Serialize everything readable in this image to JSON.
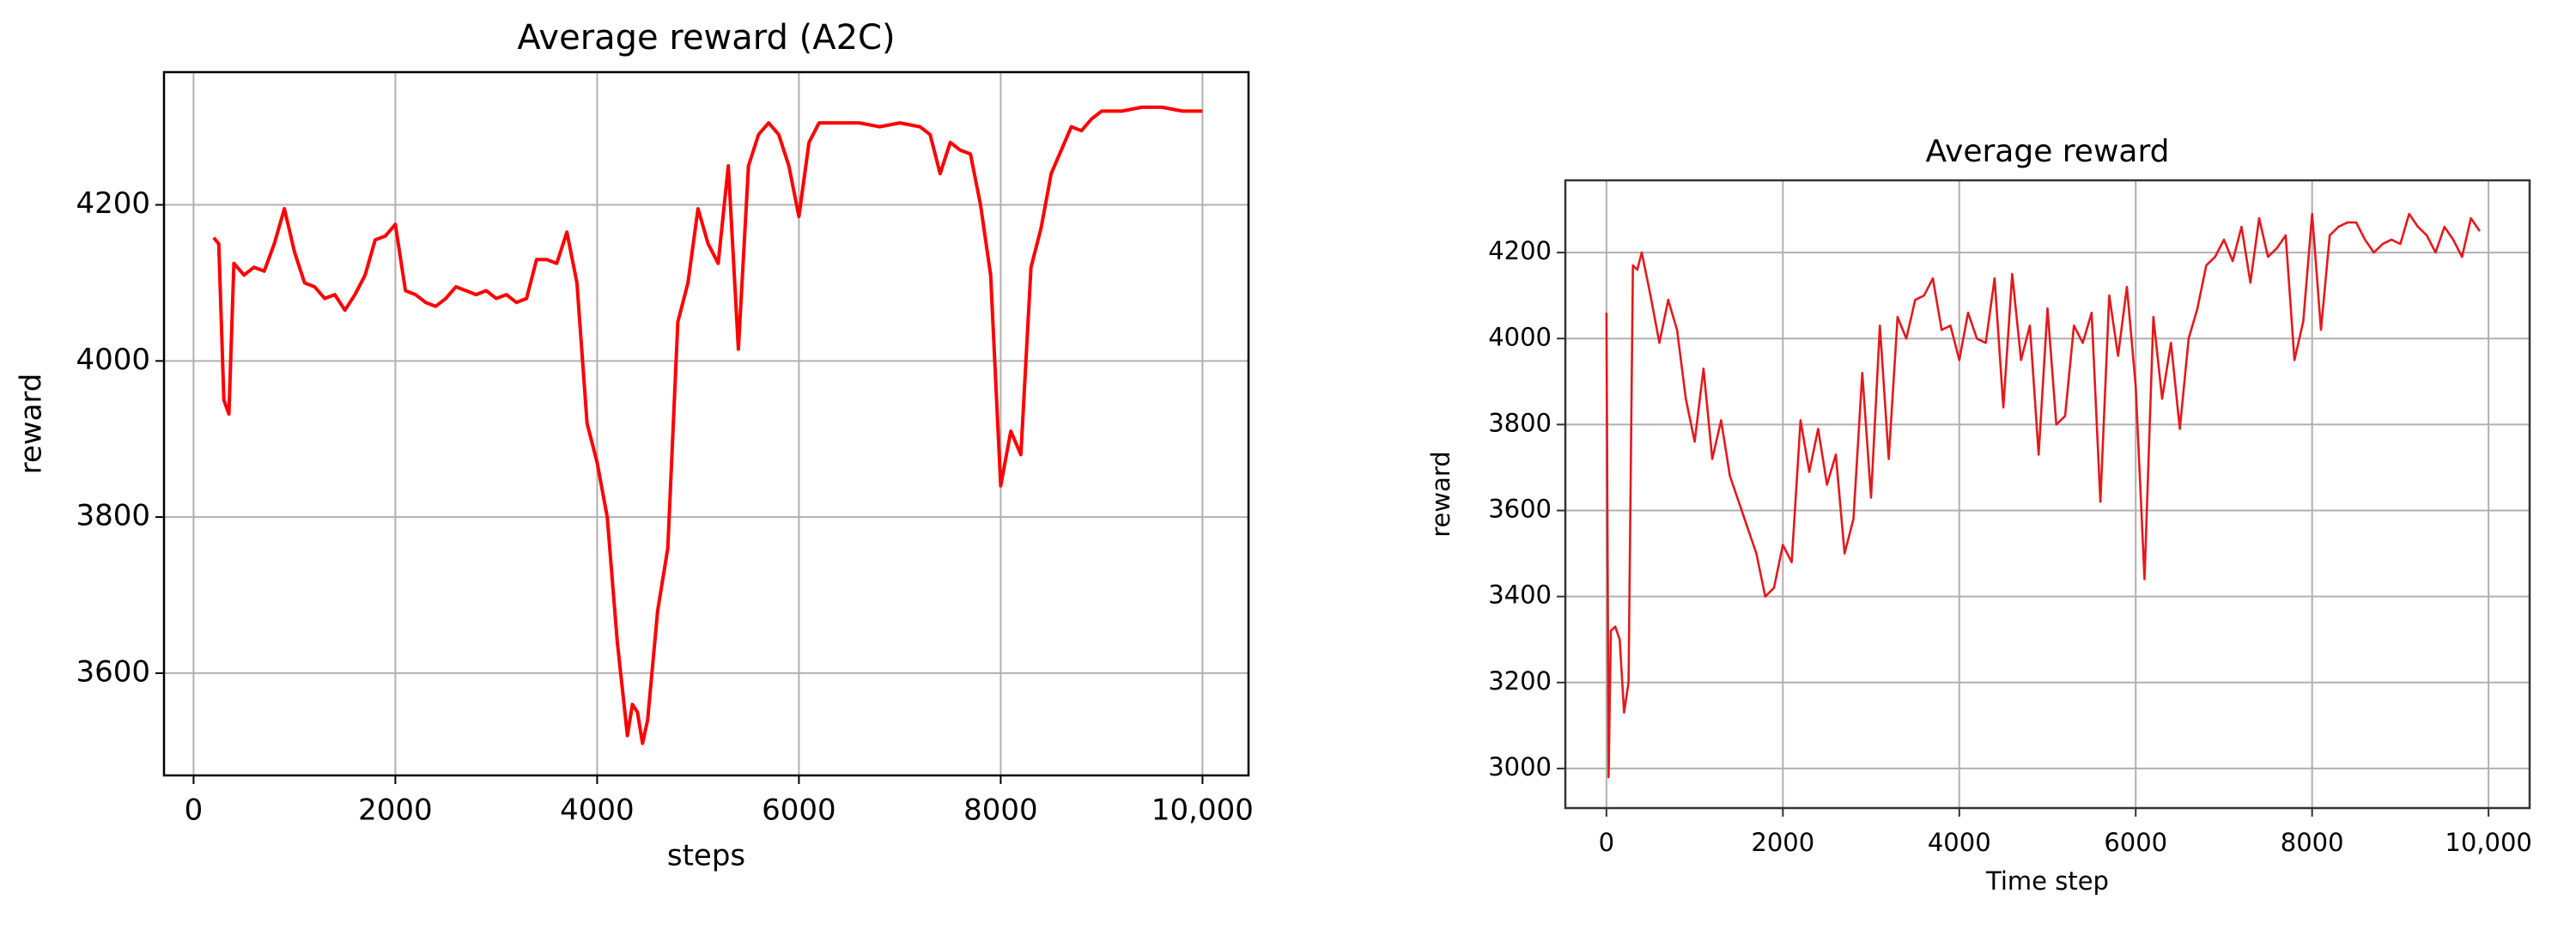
{
  "chart_data": [
    {
      "type": "line",
      "title": "Average reward (A2C)",
      "x_label": "steps",
      "y_label": "reward",
      "xlim": [
        -293,
        10456
      ],
      "ylim": [
        3469,
        4370
      ],
      "xticks": [
        0,
        2000,
        4000,
        6000,
        8000,
        {
          "value": 10000,
          "label": "10,000"
        }
      ],
      "yticks": [
        3600,
        3800,
        4000,
        4200
      ],
      "grid": true,
      "series": [
        {
          "color": "#ff0000",
          "x": [
            200,
            250,
            300,
            350,
            400,
            500,
            600,
            700,
            800,
            900,
            1000,
            1100,
            1200,
            1300,
            1400,
            1500,
            1600,
            1700,
            1800,
            1900,
            2000,
            2100,
            2200,
            2300,
            2400,
            2500,
            2600,
            2700,
            2800,
            2900,
            3000,
            3100,
            3200,
            3300,
            3400,
            3500,
            3600,
            3700,
            3800,
            3900,
            4000,
            4100,
            4200,
            4300,
            4350,
            4400,
            4450,
            4500,
            4600,
            4700,
            4800,
            4900,
            5000,
            5100,
            5200,
            5300,
            5400,
            5500,
            5600,
            5700,
            5800,
            5900,
            6000,
            6100,
            6200,
            6400,
            6600,
            6800,
            7000,
            7200,
            7300,
            7400,
            7500,
            7600,
            7700,
            7800,
            7900,
            8000,
            8100,
            8200,
            8300,
            8400,
            8500,
            8600,
            8700,
            8800,
            8900,
            9000,
            9200,
            9400,
            9600,
            9800,
            10000
          ],
          "values": [
            4158,
            4150,
            3950,
            3932,
            4125,
            4110,
            4120,
            4115,
            4150,
            4195,
            4140,
            4100,
            4095,
            4080,
            4085,
            4065,
            4085,
            4110,
            4155,
            4160,
            4175,
            4090,
            4085,
            4075,
            4070,
            4080,
            4095,
            4090,
            4085,
            4090,
            4080,
            4085,
            4075,
            4080,
            4130,
            4130,
            4125,
            4165,
            4100,
            3920,
            3870,
            3800,
            3640,
            3520,
            3560,
            3550,
            3510,
            3540,
            3680,
            3760,
            4050,
            4100,
            4195,
            4150,
            4125,
            4250,
            4015,
            4250,
            4290,
            4305,
            4290,
            4250,
            4185,
            4280,
            4305,
            4305,
            4305,
            4300,
            4305,
            4300,
            4290,
            4240,
            4280,
            4270,
            4265,
            4200,
            4110,
            3840,
            3910,
            3880,
            4120,
            4170,
            4240,
            4270,
            4300,
            4295,
            4310,
            4320,
            4320,
            4325,
            4325,
            4320,
            4320
          ]
        }
      ]
    },
    {
      "type": "line",
      "title": "Average reward",
      "x_label": "Time step",
      "y_label": "reward",
      "xlim": [
        -466,
        10466
      ],
      "ylim": [
        2908,
        4368
      ],
      "xticks": [
        0,
        2000,
        4000,
        6000,
        8000,
        {
          "value": 10000,
          "label": "10,000"
        }
      ],
      "yticks": [
        3000,
        3200,
        3400,
        3600,
        3800,
        4000,
        4200
      ],
      "grid": true,
      "series": [
        {
          "color": "#e3191c",
          "x": [
            0,
            25,
            50,
            100,
            150,
            200,
            250,
            300,
            350,
            400,
            500,
            600,
            700,
            800,
            900,
            1000,
            1100,
            1200,
            1300,
            1400,
            1500,
            1600,
            1700,
            1800,
            1900,
            2000,
            2100,
            2200,
            2300,
            2400,
            2500,
            2600,
            2700,
            2800,
            2900,
            3000,
            3100,
            3200,
            3300,
            3400,
            3500,
            3600,
            3700,
            3800,
            3900,
            4000,
            4100,
            4200,
            4300,
            4400,
            4500,
            4600,
            4700,
            4800,
            4900,
            5000,
            5100,
            5200,
            5300,
            5400,
            5500,
            5600,
            5700,
            5800,
            5900,
            6000,
            6100,
            6200,
            6300,
            6400,
            6500,
            6600,
            6700,
            6800,
            6900,
            7000,
            7100,
            7200,
            7300,
            7400,
            7500,
            7600,
            7700,
            7800,
            7900,
            8000,
            8100,
            8200,
            8300,
            8400,
            8500,
            8600,
            8700,
            8800,
            8900,
            9000,
            9100,
            9200,
            9300,
            9400,
            9500,
            9600,
            9700,
            9800,
            9900
          ],
          "values": [
            4060,
            2980,
            3320,
            3330,
            3300,
            3130,
            3200,
            4170,
            4160,
            4200,
            4100,
            3990,
            4090,
            4020,
            3860,
            3760,
            3930,
            3720,
            3810,
            3680,
            3620,
            3560,
            3500,
            3400,
            3420,
            3520,
            3480,
            3810,
            3690,
            3790,
            3660,
            3730,
            3500,
            3580,
            3920,
            3630,
            4030,
            3720,
            4050,
            4000,
            4090,
            4100,
            4140,
            4020,
            4030,
            3950,
            4060,
            4000,
            3990,
            4140,
            3840,
            4150,
            3950,
            4030,
            3730,
            4070,
            3800,
            3820,
            4030,
            3990,
            4060,
            3620,
            4100,
            3960,
            4120,
            3890,
            3440,
            4050,
            3860,
            3990,
            3790,
            4000,
            4070,
            4170,
            4190,
            4230,
            4180,
            4260,
            4130,
            4280,
            4190,
            4210,
            4240,
            3950,
            4040,
            4290,
            4020,
            4240,
            4260,
            4270,
            4270,
            4230,
            4200,
            4220,
            4230,
            4220,
            4290,
            4260,
            4240,
            4200,
            4260,
            4230,
            4190,
            4280,
            4250
          ]
        }
      ]
    }
  ]
}
